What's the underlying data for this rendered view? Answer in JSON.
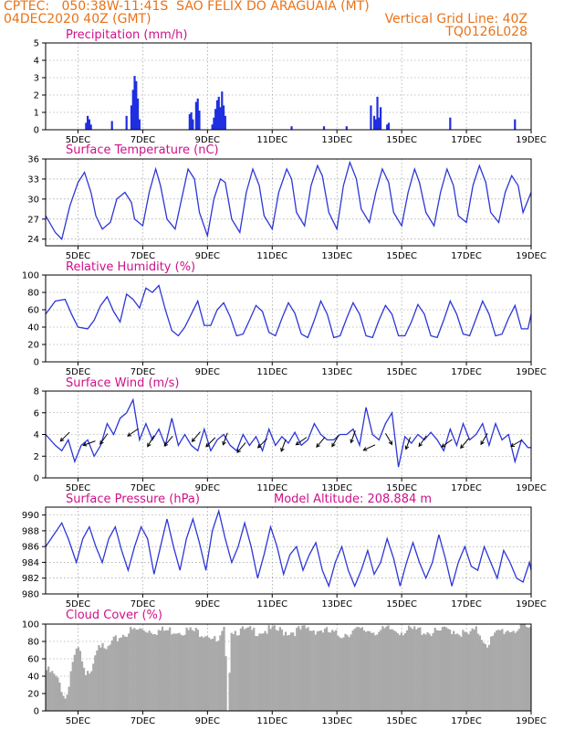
{
  "header": {
    "source_location": "CPTEC:   050:38W-11:41S  SAO FELIX DO ARAGUAIA (MT)",
    "run_date": "04DEC2020 40Z (GMT)",
    "grid_note": "Vertical Grid Line: 40Z",
    "product_code": "TQ0126L028"
  },
  "x_tick_labels": [
    "5DEC",
    "7DEC",
    "9DEC",
    "11DEC",
    "13DEC",
    "15DEC",
    "17DEC",
    "19DEC"
  ],
  "chart_data": [
    {
      "type": "bar",
      "title": "Precipitation (mm/h)",
      "xlabel": "",
      "ylabel": "",
      "ylim": [
        0,
        5
      ],
      "yticks": [
        0,
        1,
        2,
        3,
        4,
        5
      ],
      "x_range_days": [
        4.0,
        19.0
      ],
      "bars": [
        {
          "day": 5.25,
          "value": 0.4
        },
        {
          "day": 5.3,
          "value": 0.8
        },
        {
          "day": 5.35,
          "value": 0.6
        },
        {
          "day": 5.4,
          "value": 0.3
        },
        {
          "day": 6.05,
          "value": 0.5
        },
        {
          "day": 6.5,
          "value": 0.8
        },
        {
          "day": 6.65,
          "value": 1.4
        },
        {
          "day": 6.7,
          "value": 2.3
        },
        {
          "day": 6.75,
          "value": 3.1
        },
        {
          "day": 6.8,
          "value": 2.8
        },
        {
          "day": 6.85,
          "value": 1.8
        },
        {
          "day": 6.9,
          "value": 0.6
        },
        {
          "day": 8.45,
          "value": 0.9
        },
        {
          "day": 8.5,
          "value": 1.0
        },
        {
          "day": 8.55,
          "value": 0.6
        },
        {
          "day": 8.65,
          "value": 1.6
        },
        {
          "day": 8.7,
          "value": 1.8
        },
        {
          "day": 8.75,
          "value": 1.1
        },
        {
          "day": 9.15,
          "value": 0.3
        },
        {
          "day": 9.2,
          "value": 0.7
        },
        {
          "day": 9.25,
          "value": 1.2
        },
        {
          "day": 9.3,
          "value": 1.7
        },
        {
          "day": 9.35,
          "value": 1.9
        },
        {
          "day": 9.4,
          "value": 1.3
        },
        {
          "day": 9.45,
          "value": 2.2
        },
        {
          "day": 9.5,
          "value": 1.4
        },
        {
          "day": 9.55,
          "value": 0.8
        },
        {
          "day": 11.6,
          "value": 0.2
        },
        {
          "day": 12.6,
          "value": 0.2
        },
        {
          "day": 13.3,
          "value": 0.2
        },
        {
          "day": 14.05,
          "value": 1.4
        },
        {
          "day": 14.15,
          "value": 0.8
        },
        {
          "day": 14.2,
          "value": 0.6
        },
        {
          "day": 14.25,
          "value": 1.9
        },
        {
          "day": 14.3,
          "value": 0.7
        },
        {
          "day": 14.35,
          "value": 1.3
        },
        {
          "day": 14.55,
          "value": 0.3
        },
        {
          "day": 14.6,
          "value": 0.4
        },
        {
          "day": 16.5,
          "value": 0.7
        },
        {
          "day": 18.5,
          "value": 0.6
        }
      ]
    },
    {
      "type": "line",
      "title": "Surface Temperature (nC)",
      "xlabel": "",
      "ylabel": "",
      "ylim": [
        23,
        36
      ],
      "yticks": [
        24,
        27,
        30,
        33,
        36
      ],
      "x": [
        4.0,
        4.3,
        4.5,
        4.75,
        5.0,
        5.2,
        5.4,
        5.55,
        5.75,
        6.0,
        6.2,
        6.45,
        6.65,
        6.75,
        7.0,
        7.2,
        7.4,
        7.55,
        7.75,
        8.0,
        8.2,
        8.4,
        8.6,
        8.75,
        9.0,
        9.2,
        9.4,
        9.55,
        9.75,
        10.0,
        10.2,
        10.4,
        10.6,
        10.75,
        11.0,
        11.2,
        11.45,
        11.6,
        11.75,
        12.0,
        12.2,
        12.4,
        12.55,
        12.75,
        13.0,
        13.2,
        13.4,
        13.6,
        13.75,
        14.0,
        14.2,
        14.4,
        14.6,
        14.75,
        15.0,
        15.2,
        15.4,
        15.55,
        15.75,
        16.0,
        16.2,
        16.4,
        16.6,
        16.75,
        17.0,
        17.2,
        17.4,
        17.6,
        17.75,
        18.0,
        18.2,
        18.4,
        18.6,
        18.75,
        19.0
      ],
      "values": [
        27.5,
        25,
        24,
        29,
        32.5,
        34,
        31,
        27.5,
        25.5,
        26.5,
        30,
        31,
        29.5,
        27,
        26,
        31,
        34.5,
        32,
        27,
        25.5,
        30,
        34.5,
        33,
        28,
        24.5,
        30,
        33,
        32.5,
        27,
        25,
        31,
        34.5,
        32,
        27.5,
        25.5,
        31,
        34.5,
        33,
        28,
        26,
        32,
        35,
        33.5,
        28,
        25.5,
        32,
        35.5,
        33,
        28.5,
        26.5,
        31,
        34.5,
        32.5,
        28,
        26,
        31,
        34.5,
        32.5,
        28,
        26,
        31,
        34.5,
        32,
        27.5,
        26.5,
        32,
        35,
        32.5,
        28,
        26.5,
        31,
        33.5,
        32,
        28,
        31
      ]
    },
    {
      "type": "line",
      "title": "Relative Humidity (%)",
      "xlabel": "",
      "ylabel": "",
      "ylim": [
        0,
        100
      ],
      "yticks": [
        0,
        20,
        40,
        60,
        80,
        100
      ],
      "x": [
        4.0,
        4.3,
        4.6,
        4.8,
        5.0,
        5.3,
        5.5,
        5.7,
        5.9,
        6.1,
        6.3,
        6.5,
        6.7,
        6.9,
        7.1,
        7.3,
        7.5,
        7.7,
        7.9,
        8.1,
        8.3,
        8.5,
        8.7,
        8.9,
        9.1,
        9.3,
        9.5,
        9.7,
        9.9,
        10.1,
        10.3,
        10.5,
        10.7,
        10.9,
        11.1,
        11.3,
        11.5,
        11.7,
        11.9,
        12.1,
        12.3,
        12.5,
        12.7,
        12.9,
        13.1,
        13.3,
        13.5,
        13.7,
        13.9,
        14.1,
        14.3,
        14.5,
        14.7,
        14.9,
        15.1,
        15.3,
        15.5,
        15.7,
        15.9,
        16.1,
        16.3,
        16.5,
        16.7,
        16.9,
        17.1,
        17.3,
        17.5,
        17.7,
        17.9,
        18.1,
        18.3,
        18.5,
        18.7,
        18.9,
        19.0
      ],
      "values": [
        55,
        70,
        72,
        55,
        40,
        38,
        48,
        65,
        75,
        58,
        46,
        78,
        72,
        62,
        85,
        80,
        88,
        60,
        36,
        30,
        40,
        55,
        70,
        42,
        42,
        60,
        68,
        52,
        30,
        32,
        48,
        65,
        58,
        34,
        30,
        50,
        68,
        56,
        32,
        28,
        48,
        70,
        55,
        28,
        30,
        50,
        68,
        55,
        30,
        28,
        48,
        65,
        55,
        30,
        30,
        46,
        66,
        55,
        30,
        28,
        48,
        70,
        55,
        32,
        30,
        50,
        70,
        55,
        30,
        32,
        50,
        65,
        38,
        38,
        55
      ]
    },
    {
      "type": "line",
      "title": "Surface Wind (m/s)",
      "xlabel": "",
      "ylabel": "",
      "ylim": [
        0,
        8
      ],
      "yticks": [
        0,
        2,
        4,
        6,
        8
      ],
      "x": [
        4.0,
        4.3,
        4.5,
        4.7,
        4.9,
        5.1,
        5.3,
        5.5,
        5.7,
        5.9,
        6.1,
        6.3,
        6.5,
        6.7,
        6.9,
        7.1,
        7.3,
        7.5,
        7.7,
        7.9,
        8.1,
        8.3,
        8.5,
        8.7,
        8.9,
        9.1,
        9.3,
        9.5,
        9.7,
        9.9,
        10.1,
        10.3,
        10.5,
        10.7,
        10.9,
        11.1,
        11.3,
        11.5,
        11.7,
        11.9,
        12.1,
        12.3,
        12.5,
        12.7,
        12.9,
        13.1,
        13.3,
        13.5,
        13.7,
        13.9,
        14.1,
        14.3,
        14.5,
        14.7,
        14.9,
        15.1,
        15.3,
        15.5,
        15.7,
        15.9,
        16.1,
        16.3,
        16.5,
        16.7,
        16.9,
        17.1,
        17.3,
        17.5,
        17.7,
        17.9,
        18.1,
        18.3,
        18.5,
        18.7,
        18.9,
        19.0
      ],
      "values": [
        4,
        3,
        2.5,
        3.5,
        1.5,
        3,
        3.5,
        2,
        3,
        5,
        4,
        5.5,
        6,
        7.2,
        3.5,
        5,
        3.5,
        4.5,
        3,
        5.5,
        3,
        4,
        3,
        2.5,
        4.5,
        2.5,
        3.5,
        4,
        3,
        2.5,
        4,
        3,
        3.8,
        2.5,
        4.5,
        3,
        3.8,
        3.2,
        4.2,
        3,
        3.5,
        5,
        4,
        3.5,
        3.5,
        4,
        4,
        4.5,
        3,
        6.5,
        4,
        3.5,
        5,
        6,
        1,
        3.8,
        3.2,
        4,
        3.5,
        4.2,
        3.5,
        2.5,
        4.5,
        3,
        5,
        3.5,
        4,
        5,
        3,
        5,
        3.5,
        4,
        1.5,
        3.5,
        2.8,
        2.8
      ],
      "arrows": [
        {
          "day": 4.6,
          "speed": 3.8,
          "dir_deg": 225
        },
        {
          "day": 5.35,
          "speed": 3.2,
          "dir_deg": 200
        },
        {
          "day": 5.8,
          "speed": 3.6,
          "dir_deg": 235
        },
        {
          "day": 6.7,
          "speed": 4.2,
          "dir_deg": 215
        },
        {
          "day": 7.25,
          "speed": 3.4,
          "dir_deg": 240
        },
        {
          "day": 7.8,
          "speed": 3.4,
          "dir_deg": 230
        },
        {
          "day": 8.65,
          "speed": 3.8,
          "dir_deg": 230
        },
        {
          "day": 9.1,
          "speed": 3.3,
          "dir_deg": 225
        },
        {
          "day": 9.55,
          "speed": 3.6,
          "dir_deg": 250
        },
        {
          "day": 10.05,
          "speed": 2.8,
          "dir_deg": 230
        },
        {
          "day": 10.7,
          "speed": 3.2,
          "dir_deg": 225
        },
        {
          "day": 11.35,
          "speed": 3.0,
          "dir_deg": 250
        },
        {
          "day": 11.9,
          "speed": 3.4,
          "dir_deg": 215
        },
        {
          "day": 12.5,
          "speed": 3.3,
          "dir_deg": 230
        },
        {
          "day": 12.95,
          "speed": 3.4,
          "dir_deg": 240
        },
        {
          "day": 13.5,
          "speed": 3.8,
          "dir_deg": 250
        },
        {
          "day": 14.0,
          "speed": 2.8,
          "dir_deg": 205
        },
        {
          "day": 14.6,
          "speed": 3.6,
          "dir_deg": 300
        },
        {
          "day": 15.2,
          "speed": 3.2,
          "dir_deg": 250
        },
        {
          "day": 15.65,
          "speed": 3.4,
          "dir_deg": 235
        },
        {
          "day": 16.4,
          "speed": 3.2,
          "dir_deg": 215
        },
        {
          "day": 16.95,
          "speed": 3.2,
          "dir_deg": 230
        },
        {
          "day": 17.55,
          "speed": 3.6,
          "dir_deg": 240
        },
        {
          "day": 18.55,
          "speed": 3.2,
          "dir_deg": 210
        }
      ]
    },
    {
      "type": "line",
      "title": "Surface Pressure (hPa)",
      "annotation": "Model Altitude: 208.884  m",
      "xlabel": "",
      "ylabel": "",
      "ylim": [
        980,
        991
      ],
      "yticks": [
        980,
        982,
        984,
        986,
        988,
        990
      ],
      "x": [
        4.0,
        4.25,
        4.5,
        4.7,
        4.95,
        5.15,
        5.35,
        5.55,
        5.75,
        5.95,
        6.15,
        6.35,
        6.55,
        6.75,
        6.95,
        7.15,
        7.35,
        7.55,
        7.75,
        7.95,
        8.15,
        8.35,
        8.55,
        8.75,
        8.95,
        9.15,
        9.35,
        9.55,
        9.75,
        9.95,
        10.15,
        10.35,
        10.55,
        10.75,
        10.95,
        11.15,
        11.35,
        11.55,
        11.75,
        11.95,
        12.15,
        12.35,
        12.55,
        12.75,
        12.95,
        13.15,
        13.35,
        13.55,
        13.75,
        13.95,
        14.15,
        14.35,
        14.55,
        14.75,
        14.95,
        15.15,
        15.35,
        15.55,
        15.75,
        15.95,
        16.15,
        16.35,
        16.55,
        16.75,
        16.95,
        17.15,
        17.35,
        17.55,
        17.75,
        17.95,
        18.15,
        18.35,
        18.55,
        18.75,
        18.95,
        19.0
      ],
      "values": [
        986,
        987.5,
        989,
        987,
        984,
        987,
        988.5,
        986,
        984,
        987,
        988.5,
        985.5,
        983,
        986,
        988.5,
        987,
        982.5,
        986,
        989.5,
        986,
        983,
        987,
        989.5,
        986.5,
        983,
        988,
        990.5,
        987,
        984,
        986,
        989,
        986,
        982,
        985,
        988.5,
        986,
        982.5,
        985,
        986,
        983,
        985,
        986.5,
        983,
        981,
        984,
        986,
        983,
        981,
        983,
        985.5,
        982.5,
        984,
        987,
        984.5,
        981,
        984,
        986.5,
        984,
        982,
        984,
        987.5,
        984.5,
        981,
        984,
        986,
        983.5,
        983,
        986,
        984,
        982,
        985.5,
        984,
        982,
        981.5,
        984,
        983
      ]
    },
    {
      "type": "area",
      "title": "Cloud Cover (%)",
      "xlabel": "",
      "ylabel": "",
      "ylim": [
        0,
        100
      ],
      "yticks": [
        0,
        20,
        40,
        60,
        80,
        100
      ],
      "x": [
        4.0,
        4.2,
        4.4,
        4.6,
        4.8,
        5.0,
        5.2,
        5.4,
        5.6,
        5.8,
        6.0,
        6.3,
        6.6,
        7.0,
        7.5,
        8.0,
        8.5,
        9.0,
        9.3,
        9.5,
        9.6,
        9.7,
        10.0,
        10.5,
        11.0,
        11.5,
        12.0,
        12.5,
        13.0,
        13.5,
        14.0,
        14.3,
        14.6,
        15.0,
        15.5,
        16.0,
        16.5,
        17.0,
        17.3,
        17.6,
        18.0,
        18.5,
        19.0
      ],
      "values": [
        50,
        45,
        35,
        15,
        60,
        75,
        40,
        55,
        85,
        70,
        80,
        90,
        95,
        97,
        95,
        96,
        95,
        92,
        80,
        97,
        2,
        96,
        95,
        95,
        96,
        94,
        97,
        96,
        90,
        95,
        96,
        94,
        97,
        95,
        96,
        93,
        97,
        90,
        96,
        80,
        95,
        97,
        98
      ]
    }
  ]
}
